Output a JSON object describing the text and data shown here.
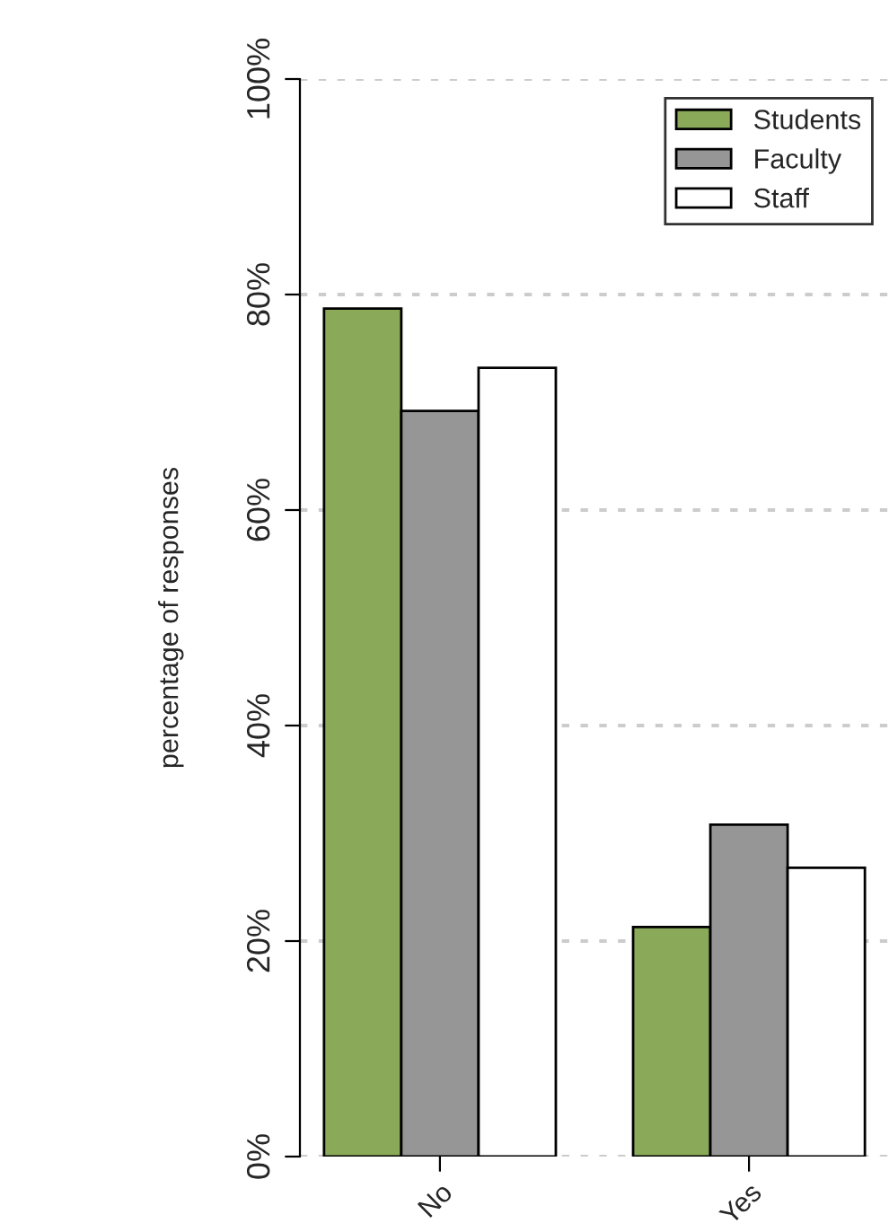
{
  "chart_data": {
    "type": "bar",
    "ylabel": "percentage of responses",
    "categories": [
      "No",
      "Yes"
    ],
    "series": [
      {
        "name": "Students",
        "color": "#8aaa5a",
        "values": [
          78.7,
          21.3
        ]
      },
      {
        "name": "Faculty",
        "color": "#969696",
        "values": [
          69.2,
          30.8
        ]
      },
      {
        "name": "Staff",
        "color": "#ffffff",
        "values": [
          73.2,
          26.8
        ]
      }
    ],
    "ylim": [
      0,
      100
    ],
    "yticks": [
      {
        "value": 0,
        "label": "0%"
      },
      {
        "value": 20,
        "label": "20%"
      },
      {
        "value": 40,
        "label": "40%"
      },
      {
        "value": 60,
        "label": "60%"
      },
      {
        "value": 80,
        "label": "80%"
      },
      {
        "value": 100,
        "label": "100%"
      }
    ],
    "grid": "y",
    "legend": "top right"
  }
}
